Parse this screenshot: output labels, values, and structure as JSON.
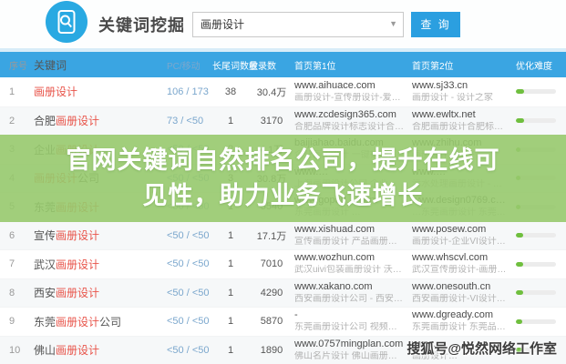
{
  "header": {
    "title": "关键词挖掘",
    "search_value": "画册设计",
    "search_button": "查 询"
  },
  "table": {
    "columns": [
      "序号",
      "关键词",
      "PC/移动",
      "长尾词数量",
      "收录数",
      "首页第1位",
      "首页第2位",
      "优化难度"
    ],
    "rows": [
      {
        "idx": "1",
        "kw": {
          "p": "",
          "m": "画册设计",
          "s": ""
        },
        "pm": "106 / 173",
        "lt": "38",
        "inc": "30.4万",
        "s1": {
          "url": "www.aihuace.com",
          "desc": "画册设计-宣传册设计-爱画册北京…"
        },
        "s2": {
          "url": "www.sj33.cn",
          "desc": "画册设计 - 设计之家"
        },
        "diff": 20
      },
      {
        "idx": "2",
        "kw": {
          "p": "合肥",
          "m": "画册设计",
          "s": ""
        },
        "pm": "73 / <50",
        "lt": "1",
        "inc": "3170",
        "s1": {
          "url": "www.zcdesign365.com",
          "desc": "合肥品牌设计标志设计合肥logo设…"
        },
        "s2": {
          "url": "www.ewltx.net",
          "desc": "合肥画册设计合肥标志设计合肥宣…"
        },
        "diff": 20
      },
      {
        "idx": "3",
        "kw": {
          "p": "企业",
          "m": "画册设计",
          "s": ""
        },
        "pm": "<50 / <50",
        "lt": "2",
        "inc": "4.1万",
        "s1": {
          "url": "baijiahao.baidu.com",
          "desc": "企业画册设计 一键找画册设…"
        },
        "s2": {
          "url": "www.zhihu.com",
          "desc": "画册设计 - 知乎"
        },
        "diff": 12
      },
      {
        "idx": "4",
        "kw": {
          "p": "",
          "m": "画册设计",
          "s": "公司"
        },
        "pm": "<50 / <50",
        "lt": "3",
        "inc": "30.8万",
        "s1": {
          "url": "www.…",
          "desc": "上海画册设计公司 企业宣传册 重…"
        },
        "s2": {
          "url": "www.…",
          "desc": "污水处理画册设计 - 企业宣传册…"
        },
        "diff": 12
      },
      {
        "idx": "5",
        "kw": {
          "p": "东莞",
          "m": "画册设计",
          "s": ""
        },
        "pm": "<50 / <50",
        "lt": "1",
        "inc": "5540",
        "s1": {
          "url": "www.gopad….com",
          "desc": "东莞画册设计 …"
        },
        "s2": {
          "url": "www.design0769.com",
          "desc": "…东莞画册设计 东莞…"
        },
        "diff": 12
      },
      {
        "idx": "6",
        "kw": {
          "p": "宣传",
          "m": "画册设计",
          "s": ""
        },
        "pm": "<50 / <50",
        "lt": "1",
        "inc": "17.1万",
        "s1": {
          "url": "www.xishuad.com",
          "desc": "宣传画册设计 产品画册设计 企业…"
        },
        "s2": {
          "url": "www.posew.com",
          "desc": "画册设计-企业VI设计-宣传画册设…"
        },
        "diff": 18
      },
      {
        "idx": "7",
        "kw": {
          "p": "武汉",
          "m": "画册设计",
          "s": ""
        },
        "pm": "<50 / <50",
        "lt": "1",
        "inc": "7010",
        "s1": {
          "url": "www.wozhun.com",
          "desc": "武汉uivi包装画册设计 沃准wozhun"
        },
        "s2": {
          "url": "www.whscvl.com",
          "desc": "武汉宣传册设计-画册设计制作-品…"
        },
        "diff": 18
      },
      {
        "idx": "8",
        "kw": {
          "p": "西安",
          "m": "画册设计",
          "s": ""
        },
        "pm": "<50 / <50",
        "lt": "1",
        "inc": "4290",
        "s1": {
          "url": "www.xakano.com",
          "desc": "西安画册设计公司 - 西安卡豆品牌…"
        },
        "s2": {
          "url": "www.onesouth.cn",
          "desc": "西安画册设计-VI设计-西安包装设…"
        },
        "diff": 18
      },
      {
        "idx": "9",
        "kw": {
          "p": "东莞",
          "m": "画册设计",
          "s": "公司"
        },
        "pm": "<50 / <50",
        "lt": "1",
        "inc": "5870",
        "s1": {
          "url": "-",
          "desc": "东莞画册设计公司 视频大全 高清…"
        },
        "s2": {
          "url": "www.dgready.com",
          "desc": "东莞画册设计 东莞品牌设计 东莞…"
        },
        "diff": 15
      },
      {
        "idx": "10",
        "kw": {
          "p": "佛山",
          "m": "画册设计",
          "s": ""
        },
        "pm": "<50 / <50",
        "lt": "1",
        "inc": "1890",
        "s1": {
          "url": "www.0757mingplan.com",
          "desc": "佛山名片设计 佛山画册设计 佛山…"
        },
        "s2": {
          "url": "www.…",
          "desc": "画册设计…"
        },
        "diff": 15
      }
    ]
  },
  "overlay": {
    "line1": "官网关键词自然排名公司，提升在线可",
    "line2": "见性，助力业务飞速增长"
  },
  "watermark": "搜狐号@悦然网络工作室",
  "colors": {
    "table_header_blue": "#3aa5e2",
    "button_blue": "#2b9fe0",
    "logo_blue": "#29a9e2",
    "keyword_red": "#e8544a",
    "pc_mobile_blue": "#7ba7cd",
    "difficulty_green": "#6fbf3e",
    "overlay_green": "#97c96d"
  }
}
